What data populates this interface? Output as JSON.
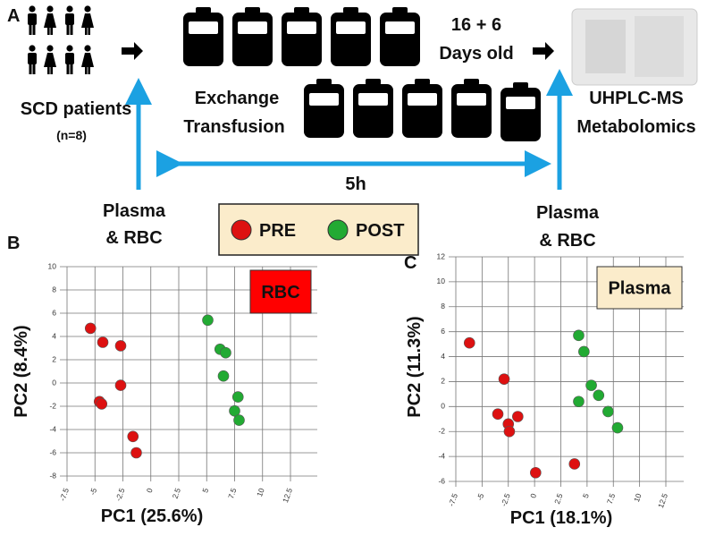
{
  "header": {
    "panel": "A",
    "patients": "SCD patients",
    "n": "(n=8)",
    "exchange_1": "Exchange",
    "exchange_2": "Transfusion",
    "age_1": "16 + 6",
    "age_2": "Days old",
    "method_1": "UHPLC-MS",
    "method_2": "Metabolomics",
    "duration": "5h",
    "sample_left_1": "Plasma",
    "sample_left_2": "& RBC",
    "sample_right_1": "Plasma",
    "sample_right_2": "& RBC"
  },
  "chart_data": [
    {
      "type": "scatter",
      "panel": "B",
      "title": "RBC",
      "title_background": "#ff0000",
      "xlabel": "PC1 (25.6%)",
      "ylabel": "PC2 (8.4%)",
      "xlim": [
        -7.5,
        12.5
      ],
      "ylim": [
        -8,
        10
      ],
      "xticks": [
        -7.5,
        -5,
        -2.5,
        0,
        2.5,
        5,
        7.5,
        10,
        12.5
      ],
      "yticks": [
        -8,
        -6,
        -4,
        -2,
        0,
        2,
        4,
        6,
        8,
        10
      ],
      "grid": true,
      "series": [
        {
          "name": "PRE",
          "color": "#dd1111",
          "x": [
            -5.4,
            -4.3,
            -2.7,
            -2.7,
            -4.6,
            -4.4,
            -1.6,
            -1.3
          ],
          "y": [
            4.7,
            3.5,
            3.2,
            -0.2,
            -1.6,
            -1.8,
            -4.6,
            -6.0
          ]
        },
        {
          "name": "POST",
          "color": "#22aa33",
          "x": [
            5.1,
            6.2,
            6.7,
            6.5,
            7.8,
            7.5,
            7.9
          ],
          "y": [
            5.4,
            2.9,
            2.6,
            0.6,
            -1.2,
            -2.4,
            -3.2
          ]
        }
      ]
    },
    {
      "type": "scatter",
      "panel": "C",
      "title": "Plasma",
      "title_background": "#fbeccb",
      "xlabel": "PC1 (18.1%)",
      "ylabel": "PC2 (11.3%)",
      "xlim": [
        -7.5,
        12.5
      ],
      "ylim": [
        -6,
        12
      ],
      "xticks": [
        -7.5,
        -5,
        -2.5,
        0,
        2.5,
        5,
        7.5,
        10,
        12.5
      ],
      "yticks": [
        -6,
        -4,
        -2,
        0,
        2,
        4,
        6,
        8,
        10,
        12
      ],
      "grid": true,
      "series": [
        {
          "color": "#dd1111",
          "x": [
            -6.2,
            -2.9,
            -3.5,
            -1.6,
            -2.5,
            -2.4,
            0.1,
            3.8
          ],
          "y": [
            5.1,
            2.2,
            -0.6,
            -0.8,
            -1.4,
            -2.0,
            -5.3,
            -4.6
          ]
        },
        {
          "color": "#22aa33",
          "x": [
            4.2,
            4.7,
            5.4,
            6.1,
            4.2,
            7.0,
            7.9
          ],
          "y": [
            5.7,
            4.4,
            1.7,
            0.9,
            0.4,
            -0.4,
            -1.7
          ]
        }
      ]
    }
  ]
}
